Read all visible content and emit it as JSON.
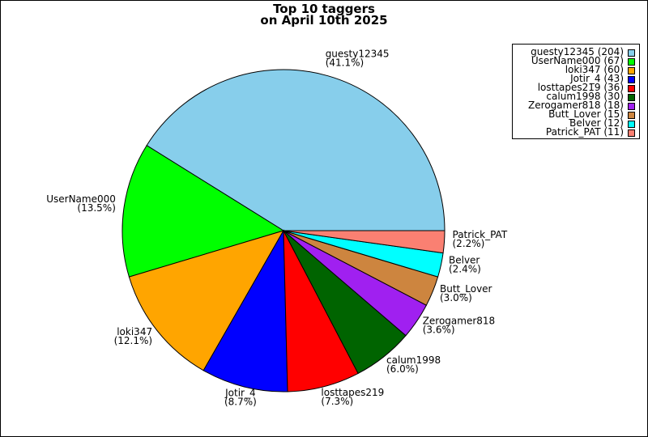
{
  "chart_data": {
    "type": "pie",
    "title_line1": "Top 10 taggers",
    "title_line2": "on April 10th 2025",
    "slices": [
      {
        "name": "guesty12345",
        "value": 204,
        "percent": "41.1%",
        "color": "#87ceeb",
        "legend": "guesty12345 (204)"
      },
      {
        "name": "UserName000",
        "value": 67,
        "percent": "13.5%",
        "color": "#00ff00",
        "legend": "UserName000 (67)"
      },
      {
        "name": "loki347",
        "value": 60,
        "percent": "12.1%",
        "color": "#ffa500",
        "legend": "loki347 (60)"
      },
      {
        "name": "Jotir_4",
        "value": 43,
        "percent": "8.7%",
        "color": "#0000ff",
        "legend": "Jotir_4 (43)"
      },
      {
        "name": "losttapes219",
        "value": 36,
        "percent": "7.3%",
        "color": "#ff0000",
        "legend": "losttapes219 (36)"
      },
      {
        "name": "calum1998",
        "value": 30,
        "percent": "6.0%",
        "color": "#006400",
        "legend": "calum1998 (30)"
      },
      {
        "name": "Zerogamer818",
        "value": 18,
        "percent": "3.6%",
        "color": "#a020f0",
        "legend": "Zerogamer818 (18)"
      },
      {
        "name": "Butt_Lover",
        "value": 15,
        "percent": "3.0%",
        "color": "#cd853f",
        "legend": "Butt_Lover (15)"
      },
      {
        "name": "Belver",
        "value": 12,
        "percent": "2.4%",
        "color": "#00ffff",
        "legend": "Belver (12)"
      },
      {
        "name": "Patrick_PAT",
        "value": 11,
        "percent": "2.2%",
        "color": "#fa8072",
        "legend": "Patrick_PAT (11)"
      }
    ],
    "legend_position": "top-right"
  }
}
